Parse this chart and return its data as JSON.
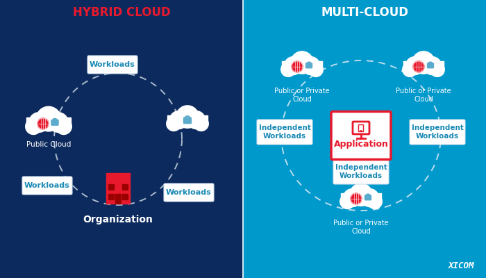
{
  "bg_left": "#0d2a5e",
  "bg_right": "#0099cc",
  "divider_color": "#ffffff",
  "title_left": "HYBRID CLOUD",
  "title_right": "MULTI-CLOUD",
  "title_left_color": "#e8192c",
  "title_right_color": "#ffffff",
  "org_label": "Organization",
  "workload_label": "Workloads",
  "ind_workload_label": "Independent\nWorkloads",
  "app_label": "Application",
  "app_box_border": "#e8192c",
  "app_text_color": "#e8192c",
  "app_box_bg": "#ffffff",
  "public_cloud_label": "Public Cloud",
  "pub_priv_label": "Public or Private\nCloud",
  "cloud_color": "#ffffff",
  "dashed_color": "#aabbcc",
  "box_tc": "#1a8ab5",
  "box_bg": "#ffffff",
  "box_ec": "#ccddee",
  "org_building_color": "#e8192c",
  "org_window_color": "#9b0000",
  "globe_color": "#e8192c",
  "lock_color": "#5aabcc",
  "monitor_border": "#e8192c",
  "monitor_stand": "#e8192c",
  "xicom_color": "#ffffff",
  "xicom_label": "XICOM"
}
